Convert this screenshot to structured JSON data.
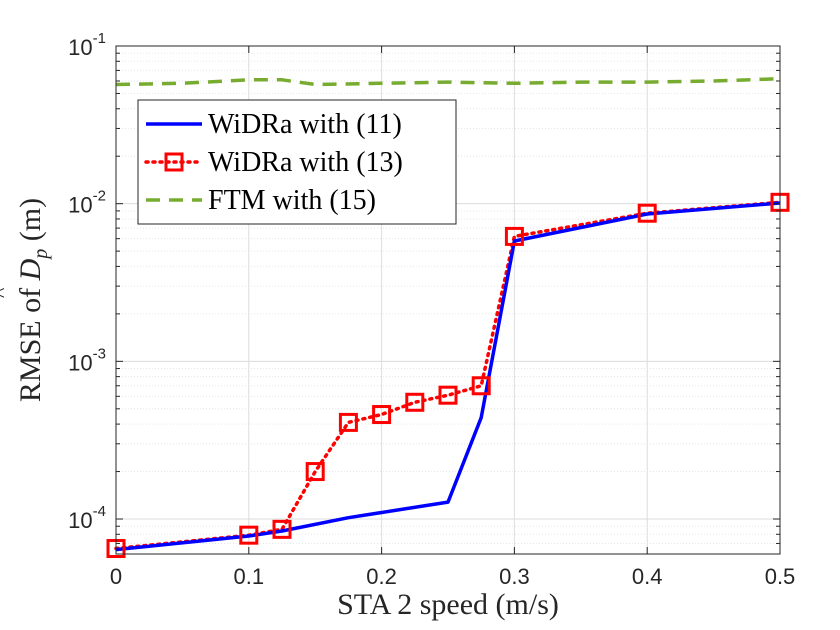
{
  "chart_data": {
    "type": "line",
    "title": "",
    "xlabel": "STA 2 speed (m/s)",
    "ylabel_prefix": "RMSE of ",
    "ylabel_symbol": "D",
    "ylabel_subscript": "p",
    "ylabel_unit": " (m)",
    "yscale": "log",
    "xlim": [
      0,
      0.5
    ],
    "ylim": [
      6e-05,
      0.1
    ],
    "x_ticks": [
      0,
      0.1,
      0.2,
      0.3,
      0.4,
      0.5
    ],
    "x_tick_labels": [
      "0",
      "0.1",
      "0.2",
      "0.3",
      "0.4",
      "0.5"
    ],
    "y_ticks": [
      0.0001,
      0.001,
      0.01,
      0.1
    ],
    "y_tick_bases": [
      "10",
      "10",
      "10",
      "10"
    ],
    "y_tick_exponents": [
      "-4",
      "-3",
      "-2",
      "-1"
    ],
    "grid": true,
    "legend_position": "upper-left",
    "series": [
      {
        "name": "WiDRa with (11)",
        "color": "#0000ff",
        "style": "solid",
        "marker": "none",
        "x": [
          0,
          0.1,
          0.125,
          0.175,
          0.25,
          0.275,
          0.3,
          0.4,
          0.5
        ],
        "y": [
          6.4e-05,
          7.8e-05,
          8.4e-05,
          0.000102,
          0.000128,
          0.00044,
          0.0058,
          0.0086,
          0.0101
        ]
      },
      {
        "name": "WiDRa with (13)",
        "color": "#ff0000",
        "style": "dotted",
        "marker": "square",
        "x": [
          0,
          0.1,
          0.125,
          0.15,
          0.175,
          0.2,
          0.225,
          0.25,
          0.275,
          0.3,
          0.4,
          0.5
        ],
        "y": [
          6.5e-05,
          7.9e-05,
          8.6e-05,
          0.0002,
          0.00041,
          0.00046,
          0.00055,
          0.00061,
          0.0007,
          0.0062,
          0.0087,
          0.0102
        ]
      },
      {
        "name": "FTM with (15)",
        "color": "#77ac30",
        "style": "dashed",
        "marker": "none",
        "x": [
          0,
          0.05,
          0.1,
          0.125,
          0.15,
          0.2,
          0.25,
          0.3,
          0.35,
          0.4,
          0.45,
          0.5
        ],
        "y": [
          0.057,
          0.058,
          0.061,
          0.061,
          0.057,
          0.058,
          0.059,
          0.058,
          0.059,
          0.059,
          0.06,
          0.062
        ]
      }
    ]
  }
}
